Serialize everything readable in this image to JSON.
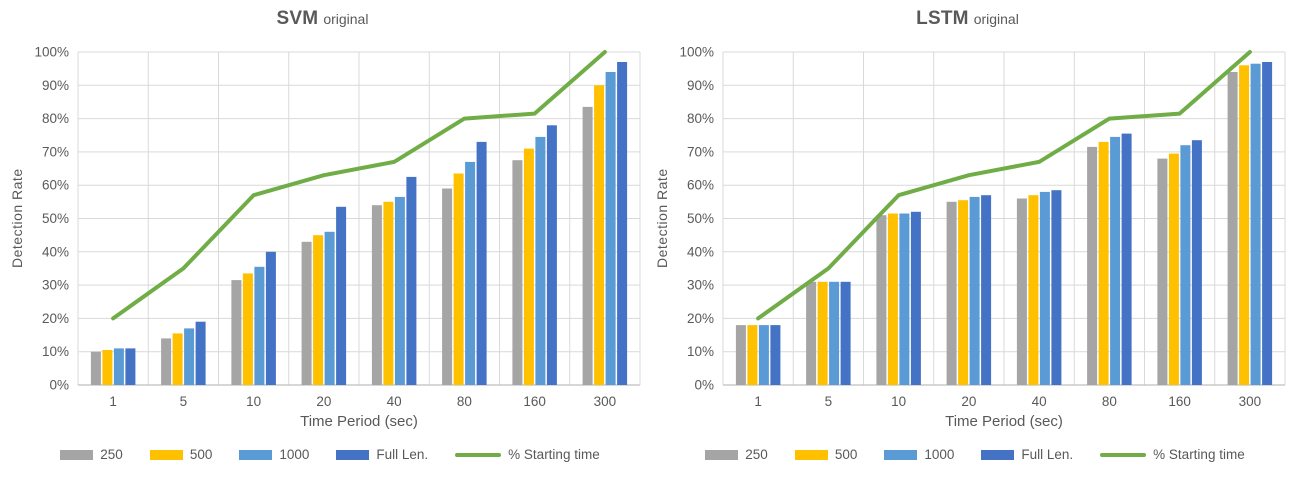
{
  "chart_data": [
    {
      "type": "bar",
      "title": "SVM original",
      "title_main": "SVM",
      "title_sub": "original",
      "xlabel": "Time Period (sec)",
      "ylabel": "Detection Rate",
      "ylim": [
        0,
        100
      ],
      "ytick_step": 10,
      "ytick_format": "percent",
      "grid": true,
      "legend_position": "bottom",
      "categories": [
        "1",
        "5",
        "10",
        "20",
        "40",
        "80",
        "160",
        "300"
      ],
      "series": [
        {
          "name": "250",
          "type": "bar",
          "color": "#A5A5A5",
          "values": [
            10,
            14,
            31.5,
            43,
            54,
            59,
            67.5,
            83.5
          ]
        },
        {
          "name": "500",
          "type": "bar",
          "color": "#FFC000",
          "values": [
            10.5,
            15.5,
            33.5,
            45,
            55,
            63.5,
            71,
            90
          ]
        },
        {
          "name": "1000",
          "type": "bar",
          "color": "#5B9BD5",
          "values": [
            11,
            17,
            35.5,
            46,
            56.5,
            67,
            74.5,
            94
          ]
        },
        {
          "name": "Full Len.",
          "type": "bar",
          "color": "#4472C4",
          "values": [
            11,
            19,
            40,
            53.5,
            62.5,
            73,
            78,
            97
          ]
        },
        {
          "name": "% Starting time",
          "type": "line",
          "color": "#70AD47",
          "values": [
            20,
            35,
            57,
            63,
            67,
            80,
            81.5,
            100
          ]
        }
      ]
    },
    {
      "type": "bar",
      "title": "LSTM original",
      "title_main": "LSTM",
      "title_sub": "original",
      "xlabel": "Time Period (sec)",
      "ylabel": "Detection Rate",
      "ylim": [
        0,
        100
      ],
      "ytick_step": 10,
      "ytick_format": "percent",
      "grid": true,
      "legend_position": "bottom",
      "categories": [
        "1",
        "5",
        "10",
        "20",
        "40",
        "80",
        "160",
        "300"
      ],
      "series": [
        {
          "name": "250",
          "type": "bar",
          "color": "#A5A5A5",
          "values": [
            18,
            31,
            51,
            55,
            56,
            71.5,
            68,
            94
          ]
        },
        {
          "name": "500",
          "type": "bar",
          "color": "#FFC000",
          "values": [
            18,
            31,
            51.5,
            55.5,
            57,
            73,
            69.5,
            96
          ]
        },
        {
          "name": "1000",
          "type": "bar",
          "color": "#5B9BD5",
          "values": [
            18,
            31,
            51.5,
            56.5,
            58,
            74.5,
            72,
            96.5
          ]
        },
        {
          "name": "Full Len.",
          "type": "bar",
          "color": "#4472C4",
          "values": [
            18,
            31,
            52,
            57,
            58.5,
            75.5,
            73.5,
            97
          ]
        },
        {
          "name": "% Starting time",
          "type": "line",
          "color": "#70AD47",
          "values": [
            20,
            35,
            57,
            63,
            67,
            80,
            81.5,
            100
          ]
        }
      ]
    }
  ],
  "colors": {
    "text": "#595959",
    "gridline": "#D9D9D9",
    "axis_line": "#BFBFBF",
    "series_250": "#A5A5A5",
    "series_500": "#FFC000",
    "series_1000": "#5B9BD5",
    "series_full_len": "#4472C4",
    "series_starting_time": "#70AD47"
  }
}
